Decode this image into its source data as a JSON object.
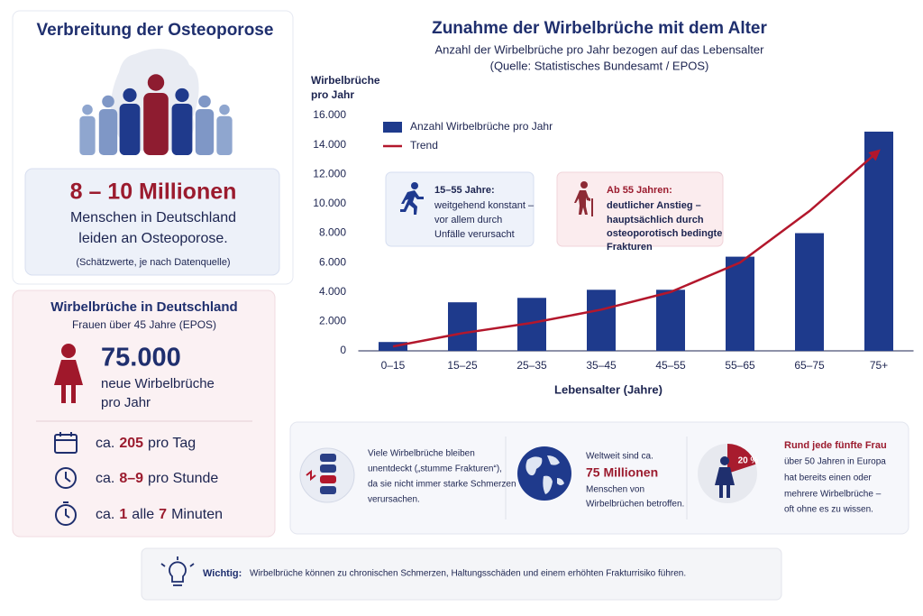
{
  "prevalence": {
    "title": "Verbreitung der Osteoporose",
    "figure": "8 – 10 Millionen",
    "lines": [
      "Menschen in Deutschland",
      "leiden an Osteoporose."
    ],
    "note": "(Schätzwerte, je nach Datenquelle)"
  },
  "fractures_de": {
    "title": "Wirbelbrüche in Deutschland",
    "subtitle": "Frauen über 45 Jahre (EPOS)",
    "figure": "75.000",
    "lines": [
      "neue Wirbelbrüche",
      "pro Jahr"
    ],
    "rates": [
      [
        "ca.",
        "205",
        "pro Tag"
      ],
      [
        "ca.",
        "8–9",
        "pro Stunde"
      ],
      [
        "ca.",
        "1",
        "alle",
        "7",
        "Minuten"
      ]
    ]
  },
  "chart_data": {
    "type": "bar",
    "title": "Zunahme der Wirbelbrüche mit dem Alter",
    "subtitle": [
      "Anzahl der Wirbelbrüche pro Jahr bezogen auf das Lebensalter",
      "(Quelle: Statistisches Bundesamt / EPOS)"
    ],
    "y_label": [
      "Wirbelbrüche",
      "pro Jahr"
    ],
    "x_label": "Lebensalter (Jahre)",
    "categories": [
      "0–15",
      "15–25",
      "25–35",
      "35–45",
      "45–55",
      "55–65",
      "65–75",
      "75+"
    ],
    "series": [
      {
        "name": "Anzahl Wirbelbrüche pro Jahr",
        "color": "#1e3a8c",
        "values": [
          600,
          3300,
          3600,
          4150,
          4150,
          6400,
          8000,
          14900
        ]
      },
      {
        "name": "Trend",
        "color": "#b3172c",
        "type": "line",
        "values": [
          300,
          1200,
          1900,
          2800,
          4000,
          6000,
          9500,
          13600
        ]
      }
    ],
    "ylim": [
      0,
      16000
    ],
    "yticks": [
      0,
      {
        "value": 2000,
        "label": "2.000"
      },
      {
        "value": 4000,
        "label": "4.000"
      },
      {
        "value": 6000,
        "label": "6.000"
      },
      {
        "value": 8000,
        "label": "8.000"
      },
      {
        "value": 10000,
        "label": "10.000"
      },
      {
        "value": 12000,
        "label": "12.000"
      },
      {
        "value": 14000,
        "label": "14.000"
      },
      {
        "value": 16000,
        "label": "16.000"
      }
    ],
    "grid": false,
    "annotations": [
      {
        "title": "15–55 Jahre:",
        "lines": [
          "weitgehend konstant –",
          "vor allem durch",
          "Unfälle verursacht"
        ]
      },
      {
        "title": "Ab 55 Jahren:",
        "lines": [
          "deutlicher Anstieg –",
          "hauptsächlich durch",
          "osteoporotisch bedingte",
          "Frakturen"
        ]
      }
    ]
  },
  "facts": [
    {
      "lines": [
        "Viele Wirbelbrüche bleiben",
        "unentdeckt („stumme Frakturen“),",
        "da sie nicht immer starke Schmerzen",
        "verursachen."
      ]
    },
    {
      "lines": [
        "Weltweit sind ca.",
        "75 Millionen",
        "Menschen von",
        "Wirbelbrüchen betroffen."
      ]
    },
    {
      "badge": "20 %",
      "lines": [
        "Rund jede fünfte Frau",
        "über 50 Jahren in Europa",
        "hat bereits einen oder",
        "mehrere Wirbelbrüche –",
        "oft ohne es zu wissen."
      ]
    }
  ],
  "note": {
    "label": "Wichtig:",
    "text": "Wirbelbrüche können zu chronischen Schmerzen, Haltungsschäden und einem erhöhten Frakturrisiko führen."
  }
}
